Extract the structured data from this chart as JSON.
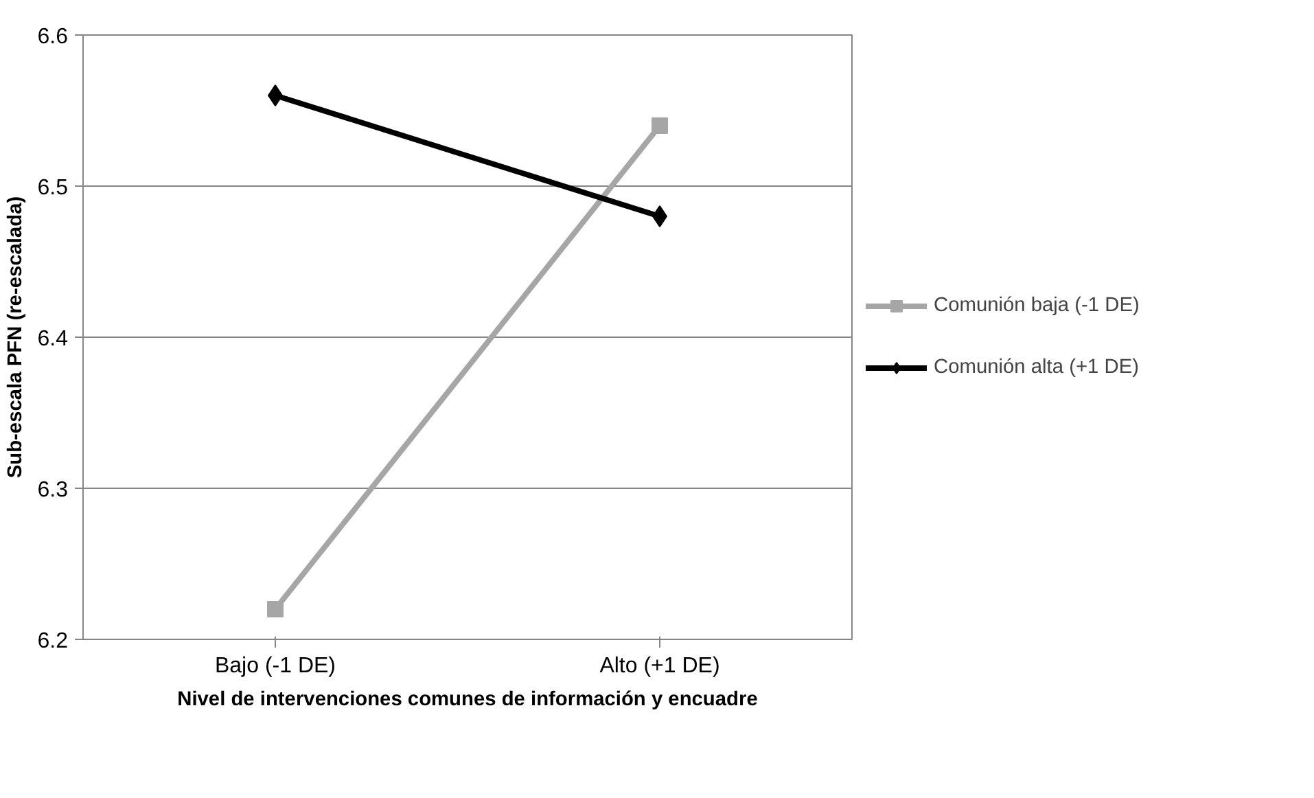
{
  "chart_data": {
    "type": "line",
    "xlabel": "Nivel de intervenciones comunes de información y encuadre",
    "ylabel": "Sub-escala PFN (re-escalada)",
    "categories": [
      "Bajo (-1 DE)",
      "Alto (+1 DE)"
    ],
    "series": [
      {
        "name": "Comunión baja (-1 DE)",
        "color": "#a6a6a6",
        "values": [
          6.22,
          6.54
        ],
        "marker": "square"
      },
      {
        "name": "Comunión alta (+1 DE)",
        "color": "#000000",
        "values": [
          6.56,
          6.48
        ],
        "marker": "diamond"
      }
    ],
    "ylim": [
      6.2,
      6.6
    ],
    "yticks": [
      6.2,
      6.3,
      6.4,
      6.5,
      6.6
    ],
    "grid": "y",
    "legend": "right",
    "line_style": "solid"
  }
}
